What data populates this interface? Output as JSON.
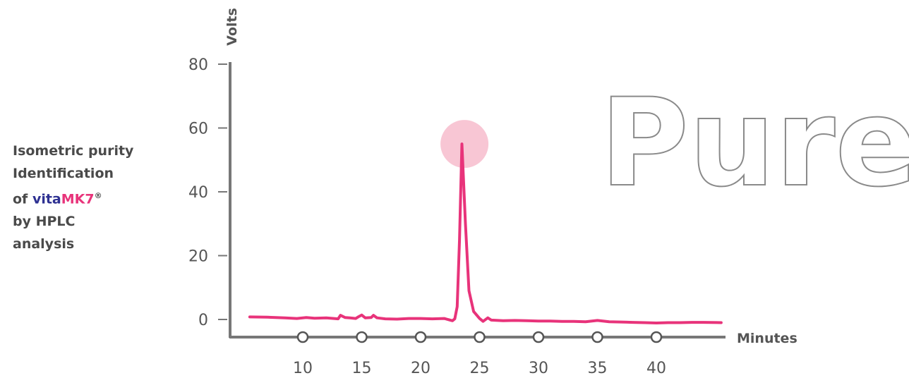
{
  "side_label": {
    "line1": "Isometric purity",
    "line2": "Identification",
    "line3_prefix": "of ",
    "brand_part1": "vita",
    "brand_part2": "MK7",
    "registered": "®",
    "line4": "by HPLC",
    "line5": "analysis"
  },
  "watermark": "Pure",
  "colors": {
    "trace": "#e8337a",
    "highlight": "#f6b8c9",
    "axis": "#777777",
    "brand_blue": "#2e3192"
  },
  "chart_data": {
    "type": "line",
    "title": "",
    "xlabel": "Minutes",
    "ylabel": "Volts",
    "xlim": [
      5,
      47
    ],
    "ylim": [
      0,
      80
    ],
    "x_ticks": [
      10,
      15,
      20,
      25,
      30,
      35,
      40
    ],
    "y_ticks": [
      0,
      20,
      40,
      60,
      80
    ],
    "grid": false,
    "highlight": {
      "x": 23.6,
      "y": 55,
      "label": ""
    },
    "series": [
      {
        "values": [
          [
            5.5,
            0.8
          ],
          [
            7,
            0.7
          ],
          [
            8.5,
            0.5
          ],
          [
            9.5,
            0.3
          ],
          [
            10.3,
            0.6
          ],
          [
            11,
            0.4
          ],
          [
            12,
            0.5
          ],
          [
            13,
            0.2
          ],
          [
            13.2,
            1.3
          ],
          [
            13.6,
            0.6
          ],
          [
            14,
            0.5
          ],
          [
            14.5,
            0.3
          ],
          [
            14.7,
            0.8
          ],
          [
            15.0,
            1.4
          ],
          [
            15.3,
            0.5
          ],
          [
            15.8,
            0.6
          ],
          [
            16.0,
            1.3
          ],
          [
            16.3,
            0.5
          ],
          [
            17,
            0.2
          ],
          [
            18,
            0.1
          ],
          [
            19,
            0.3
          ],
          [
            20,
            0.3
          ],
          [
            21,
            0.2
          ],
          [
            22,
            0.3
          ],
          [
            22.7,
            -0.4
          ],
          [
            22.9,
            0.2
          ],
          [
            23.1,
            4
          ],
          [
            23.3,
            25
          ],
          [
            23.5,
            55
          ],
          [
            23.8,
            30
          ],
          [
            24.1,
            9
          ],
          [
            24.5,
            2.5
          ],
          [
            25,
            0.3
          ],
          [
            25.3,
            -0.6
          ],
          [
            25.7,
            0.5
          ],
          [
            26,
            -0.2
          ],
          [
            27,
            -0.4
          ],
          [
            28,
            -0.3
          ],
          [
            29,
            -0.4
          ],
          [
            30,
            -0.5
          ],
          [
            31,
            -0.5
          ],
          [
            32,
            -0.6
          ],
          [
            33,
            -0.6
          ],
          [
            34,
            -0.7
          ],
          [
            35,
            -0.3
          ],
          [
            36,
            -0.7
          ],
          [
            37,
            -0.8
          ],
          [
            38,
            -0.9
          ],
          [
            39,
            -1.0
          ],
          [
            40,
            -1.1
          ],
          [
            41,
            -1.0
          ],
          [
            42,
            -1.0
          ],
          [
            43,
            -0.9
          ],
          [
            44,
            -0.9
          ],
          [
            45.5,
            -1.0
          ]
        ]
      }
    ]
  }
}
